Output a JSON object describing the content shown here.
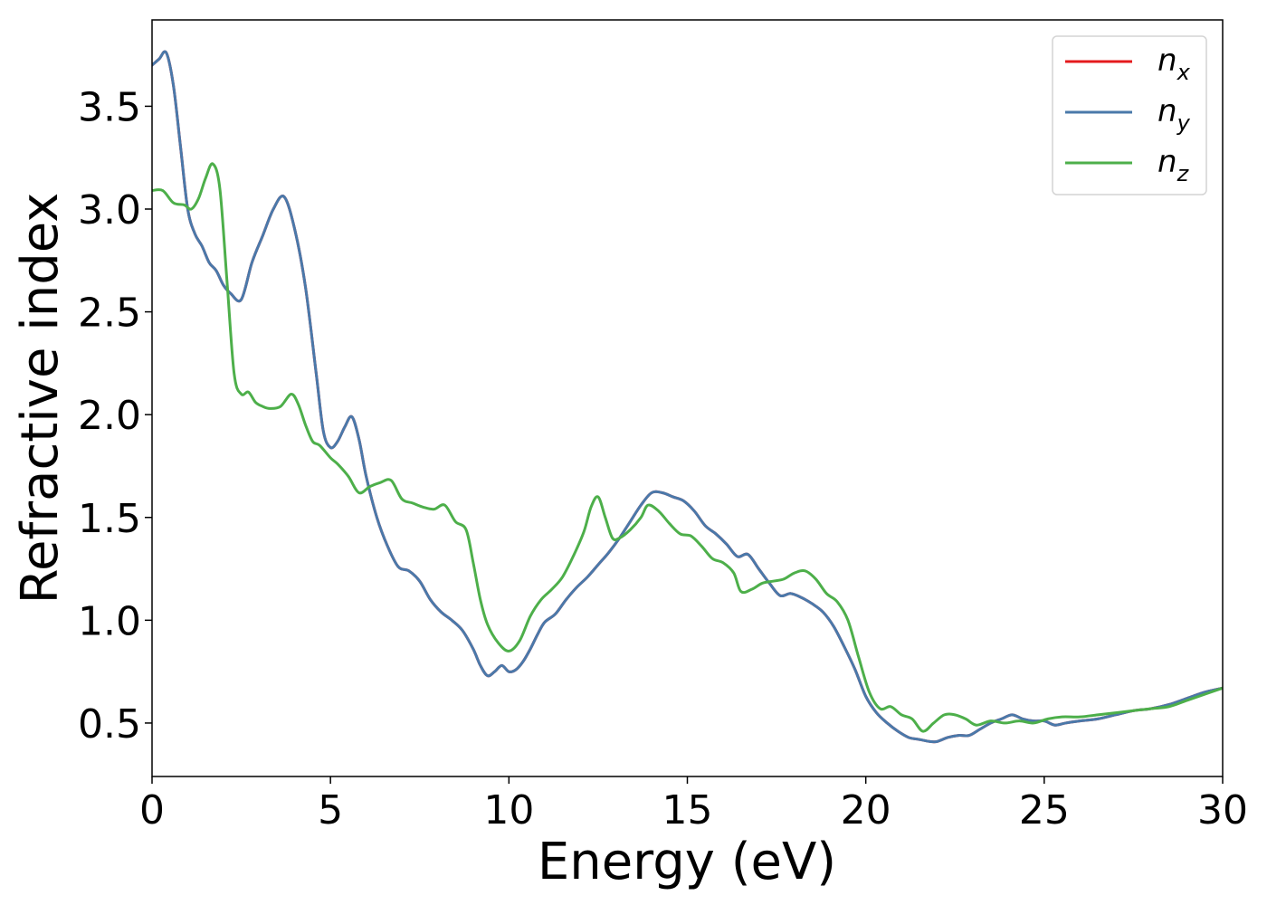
{
  "chart_data": {
    "type": "line",
    "title": "",
    "xlabel": "Energy (eV)",
    "ylabel": "Refractive index",
    "xlim": [
      0,
      30
    ],
    "ylim": [
      0.24,
      3.92
    ],
    "xticks": [
      0,
      5,
      10,
      15,
      20,
      25,
      30
    ],
    "xtick_labels": [
      "0",
      "5",
      "10",
      "15",
      "20",
      "25",
      "30"
    ],
    "yticks": [
      0.5,
      1.0,
      1.5,
      2.0,
      2.5,
      3.0,
      3.5
    ],
    "ytick_labels": [
      "0.5",
      "1.0",
      "1.5",
      "2.0",
      "2.5",
      "3.0",
      "3.5"
    ],
    "grid": false,
    "legend": {
      "position": "top-right"
    },
    "series": [
      {
        "name": "n_x",
        "label_base": "n",
        "label_sub": "x",
        "color": "#e41a1c",
        "x": [
          0,
          0.2,
          0.4,
          0.6,
          0.8,
          1.0,
          1.2,
          1.4,
          1.6,
          1.8,
          2.0,
          2.2,
          2.5,
          2.8,
          3.1,
          3.4,
          3.7,
          4.0,
          4.3,
          4.6,
          4.8,
          5.0,
          5.2,
          5.4,
          5.6,
          5.8,
          6.0,
          6.3,
          6.6,
          6.9,
          7.2,
          7.5,
          7.8,
          8.1,
          8.4,
          8.7,
          9.0,
          9.2,
          9.4,
          9.6,
          9.8,
          10.0,
          10.2,
          10.4,
          10.6,
          10.8,
          11.0,
          11.3,
          11.6,
          11.9,
          12.2,
          12.5,
          12.8,
          13.1,
          13.4,
          13.7,
          14.0,
          14.3,
          14.6,
          14.9,
          15.2,
          15.5,
          15.8,
          16.1,
          16.4,
          16.7,
          17.0,
          17.3,
          17.6,
          17.9,
          18.2,
          18.5,
          18.8,
          19.1,
          19.4,
          19.7,
          20.0,
          20.3,
          20.6,
          20.9,
          21.2,
          21.5,
          21.8,
          22.0,
          22.3,
          22.6,
          22.9,
          23.2,
          23.5,
          23.8,
          24.1,
          24.4,
          24.7,
          25.0,
          25.3,
          25.6,
          26.0,
          26.5,
          27.0,
          27.5,
          28.0,
          28.5,
          29.0,
          29.5,
          30.0
        ],
        "y": [
          3.7,
          3.73,
          3.76,
          3.6,
          3.3,
          3.0,
          2.88,
          2.82,
          2.74,
          2.7,
          2.63,
          2.59,
          2.56,
          2.74,
          2.87,
          3.0,
          3.06,
          2.9,
          2.62,
          2.2,
          1.92,
          1.84,
          1.87,
          1.94,
          1.99,
          1.88,
          1.7,
          1.5,
          1.36,
          1.26,
          1.24,
          1.19,
          1.1,
          1.04,
          1.0,
          0.95,
          0.86,
          0.78,
          0.73,
          0.75,
          0.78,
          0.75,
          0.76,
          0.8,
          0.86,
          0.93,
          0.99,
          1.03,
          1.1,
          1.16,
          1.21,
          1.27,
          1.33,
          1.4,
          1.48,
          1.56,
          1.62,
          1.62,
          1.6,
          1.58,
          1.53,
          1.46,
          1.42,
          1.37,
          1.31,
          1.32,
          1.25,
          1.18,
          1.12,
          1.13,
          1.11,
          1.08,
          1.04,
          0.97,
          0.87,
          0.76,
          0.63,
          0.55,
          0.5,
          0.46,
          0.43,
          0.42,
          0.41,
          0.41,
          0.43,
          0.44,
          0.44,
          0.47,
          0.5,
          0.52,
          0.54,
          0.52,
          0.51,
          0.51,
          0.49,
          0.5,
          0.51,
          0.52,
          0.54,
          0.56,
          0.57,
          0.59,
          0.62,
          0.65,
          0.67
        ]
      },
      {
        "name": "n_y",
        "label_base": "n",
        "label_sub": "y",
        "color": "#4a79aa",
        "x": [
          0,
          0.2,
          0.4,
          0.6,
          0.8,
          1.0,
          1.2,
          1.4,
          1.6,
          1.8,
          2.0,
          2.2,
          2.5,
          2.8,
          3.1,
          3.4,
          3.7,
          4.0,
          4.3,
          4.6,
          4.8,
          5.0,
          5.2,
          5.4,
          5.6,
          5.8,
          6.0,
          6.3,
          6.6,
          6.9,
          7.2,
          7.5,
          7.8,
          8.1,
          8.4,
          8.7,
          9.0,
          9.2,
          9.4,
          9.6,
          9.8,
          10.0,
          10.2,
          10.4,
          10.6,
          10.8,
          11.0,
          11.3,
          11.6,
          11.9,
          12.2,
          12.5,
          12.8,
          13.1,
          13.4,
          13.7,
          14.0,
          14.3,
          14.6,
          14.9,
          15.2,
          15.5,
          15.8,
          16.1,
          16.4,
          16.7,
          17.0,
          17.3,
          17.6,
          17.9,
          18.2,
          18.5,
          18.8,
          19.1,
          19.4,
          19.7,
          20.0,
          20.3,
          20.6,
          20.9,
          21.2,
          21.5,
          21.8,
          22.0,
          22.3,
          22.6,
          22.9,
          23.2,
          23.5,
          23.8,
          24.1,
          24.4,
          24.7,
          25.0,
          25.3,
          25.6,
          26.0,
          26.5,
          27.0,
          27.5,
          28.0,
          28.5,
          29.0,
          29.5,
          30.0
        ],
        "y": [
          3.7,
          3.73,
          3.76,
          3.6,
          3.3,
          3.0,
          2.88,
          2.82,
          2.74,
          2.7,
          2.63,
          2.59,
          2.56,
          2.74,
          2.87,
          3.0,
          3.06,
          2.9,
          2.62,
          2.2,
          1.92,
          1.84,
          1.87,
          1.94,
          1.99,
          1.88,
          1.7,
          1.5,
          1.36,
          1.26,
          1.24,
          1.19,
          1.1,
          1.04,
          1.0,
          0.95,
          0.86,
          0.78,
          0.73,
          0.75,
          0.78,
          0.75,
          0.76,
          0.8,
          0.86,
          0.93,
          0.99,
          1.03,
          1.1,
          1.16,
          1.21,
          1.27,
          1.33,
          1.4,
          1.48,
          1.56,
          1.62,
          1.62,
          1.6,
          1.58,
          1.53,
          1.46,
          1.42,
          1.37,
          1.31,
          1.32,
          1.25,
          1.18,
          1.12,
          1.13,
          1.11,
          1.08,
          1.04,
          0.97,
          0.87,
          0.76,
          0.63,
          0.55,
          0.5,
          0.46,
          0.43,
          0.42,
          0.41,
          0.41,
          0.43,
          0.44,
          0.44,
          0.47,
          0.5,
          0.52,
          0.54,
          0.52,
          0.51,
          0.51,
          0.49,
          0.5,
          0.51,
          0.52,
          0.54,
          0.56,
          0.57,
          0.59,
          0.62,
          0.65,
          0.67
        ]
      },
      {
        "name": "n_z",
        "label_base": "n",
        "label_sub": "z",
        "color": "#4daf4a",
        "x": [
          0,
          0.3,
          0.6,
          0.9,
          1.1,
          1.3,
          1.5,
          1.7,
          1.9,
          2.1,
          2.3,
          2.5,
          2.7,
          2.9,
          3.1,
          3.3,
          3.6,
          3.9,
          4.1,
          4.3,
          4.5,
          4.7,
          5.0,
          5.2,
          5.5,
          5.8,
          6.1,
          6.4,
          6.7,
          7.0,
          7.3,
          7.6,
          7.9,
          8.2,
          8.5,
          8.8,
          9.0,
          9.2,
          9.4,
          9.7,
          10.0,
          10.3,
          10.6,
          10.9,
          11.2,
          11.5,
          11.8,
          12.1,
          12.3,
          12.5,
          12.7,
          12.9,
          13.1,
          13.4,
          13.7,
          13.9,
          14.2,
          14.5,
          14.8,
          15.1,
          15.4,
          15.7,
          16.0,
          16.3,
          16.5,
          16.8,
          17.1,
          17.4,
          17.7,
          18.0,
          18.3,
          18.6,
          18.9,
          19.2,
          19.5,
          19.8,
          20.1,
          20.4,
          20.7,
          21.0,
          21.3,
          21.6,
          21.9,
          22.2,
          22.5,
          22.8,
          23.1,
          23.5,
          23.9,
          24.3,
          24.7,
          25.1,
          25.5,
          26.0,
          26.5,
          27.0,
          27.5,
          28.0,
          28.5,
          29.0,
          29.5,
          30.0
        ],
        "y": [
          3.09,
          3.09,
          3.03,
          3.02,
          3.0,
          3.05,
          3.15,
          3.22,
          3.1,
          2.65,
          2.2,
          2.1,
          2.11,
          2.06,
          2.04,
          2.03,
          2.04,
          2.1,
          2.05,
          1.95,
          1.87,
          1.85,
          1.79,
          1.76,
          1.7,
          1.62,
          1.65,
          1.67,
          1.68,
          1.59,
          1.57,
          1.55,
          1.54,
          1.56,
          1.48,
          1.44,
          1.28,
          1.1,
          0.98,
          0.89,
          0.85,
          0.9,
          1.02,
          1.1,
          1.15,
          1.21,
          1.31,
          1.43,
          1.55,
          1.6,
          1.5,
          1.4,
          1.4,
          1.44,
          1.5,
          1.56,
          1.53,
          1.47,
          1.42,
          1.41,
          1.36,
          1.3,
          1.28,
          1.23,
          1.14,
          1.15,
          1.18,
          1.19,
          1.2,
          1.23,
          1.24,
          1.2,
          1.13,
          1.09,
          1.0,
          0.82,
          0.65,
          0.57,
          0.58,
          0.54,
          0.52,
          0.46,
          0.5,
          0.54,
          0.54,
          0.52,
          0.49,
          0.51,
          0.5,
          0.51,
          0.5,
          0.52,
          0.53,
          0.53,
          0.54,
          0.55,
          0.56,
          0.57,
          0.58,
          0.61,
          0.64,
          0.67
        ]
      }
    ]
  }
}
